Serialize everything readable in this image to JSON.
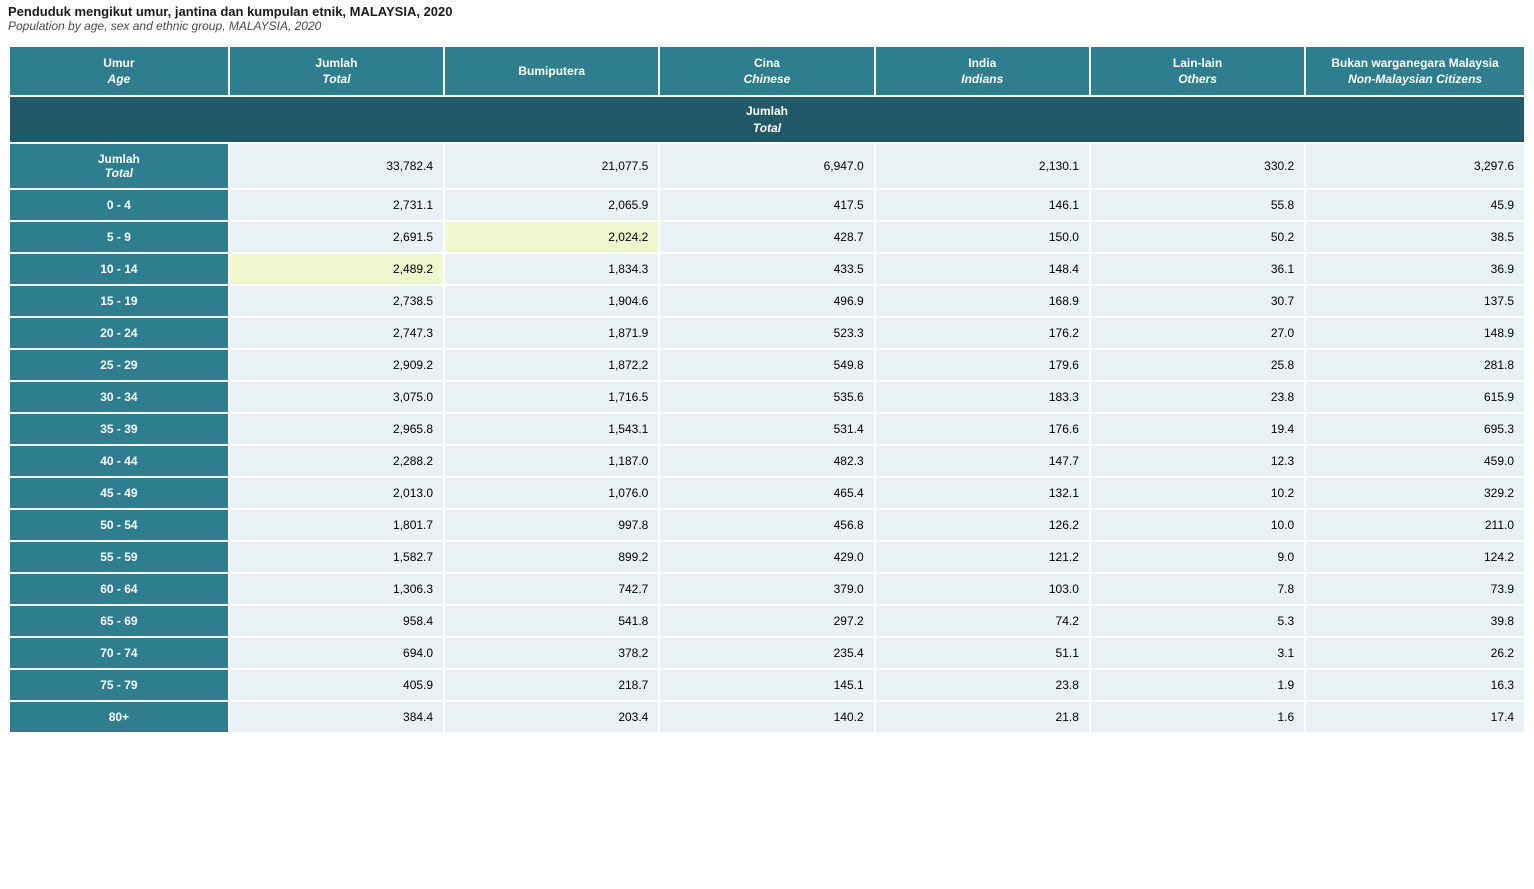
{
  "title": {
    "main": "Penduduk mengikut umur, jantina dan kumpulan etnik, MALAYSIA, 2020",
    "sub": "Population by age, sex and ethnic group, MALAYSIA, 2020"
  },
  "table": {
    "type": "table",
    "colors": {
      "header_bg": "#2e7e8f",
      "section_bg": "#215968",
      "header_text": "#ffffff",
      "cell_bg": "#eaf1f5",
      "cell_highlight_bg": "#eff7ce",
      "cell_text": "#000000",
      "page_bg": "#ffffff"
    },
    "font_sizes": {
      "title": 13,
      "subtitle": 12,
      "header": 12,
      "cell": 12
    },
    "columns": [
      {
        "key": "age",
        "line1": "Umur",
        "line2": "Age"
      },
      {
        "key": "total",
        "line1": "Jumlah",
        "line2": "Total"
      },
      {
        "key": "bumiputera",
        "line1": "Bumiputera",
        "line2": ""
      },
      {
        "key": "chinese",
        "line1": "Cina",
        "line2": "Chinese"
      },
      {
        "key": "indians",
        "line1": "India",
        "line2": "Indians"
      },
      {
        "key": "others",
        "line1": "Lain-lain",
        "line2": "Others"
      },
      {
        "key": "noncit",
        "line1": "Bukan warganegara Malaysia",
        "line2": "Non-Malaysian Citizens"
      }
    ],
    "section_header": {
      "line1": "Jumlah",
      "line2": "Total"
    },
    "rows": [
      {
        "label_line1": "Jumlah",
        "label_line2": "Total",
        "values": [
          "33,782.4",
          "21,077.5",
          "6,947.0",
          "2,130.1",
          "330.2",
          "3,297.6"
        ],
        "highlights": [
          false,
          false,
          false,
          false,
          false,
          false
        ]
      },
      {
        "label_line1": "0 - 4",
        "label_line2": "",
        "values": [
          "2,731.1",
          "2,065.9",
          "417.5",
          "146.1",
          "55.8",
          "45.9"
        ],
        "highlights": [
          false,
          false,
          false,
          false,
          false,
          false
        ]
      },
      {
        "label_line1": "5 - 9",
        "label_line2": "",
        "values": [
          "2,691.5",
          "2,024.2",
          "428.7",
          "150.0",
          "50.2",
          "38.5"
        ],
        "highlights": [
          false,
          true,
          false,
          false,
          false,
          false
        ]
      },
      {
        "label_line1": "10 - 14",
        "label_line2": "",
        "values": [
          "2,489.2",
          "1,834.3",
          "433.5",
          "148.4",
          "36.1",
          "36.9"
        ],
        "highlights": [
          true,
          false,
          false,
          false,
          false,
          false
        ]
      },
      {
        "label_line1": "15 - 19",
        "label_line2": "",
        "values": [
          "2,738.5",
          "1,904.6",
          "496.9",
          "168.9",
          "30.7",
          "137.5"
        ],
        "highlights": [
          false,
          false,
          false,
          false,
          false,
          false
        ]
      },
      {
        "label_line1": "20 - 24",
        "label_line2": "",
        "values": [
          "2,747.3",
          "1,871.9",
          "523.3",
          "176.2",
          "27.0",
          "148.9"
        ],
        "highlights": [
          false,
          false,
          false,
          false,
          false,
          false
        ]
      },
      {
        "label_line1": "25 - 29",
        "label_line2": "",
        "values": [
          "2,909.2",
          "1,872.2",
          "549.8",
          "179.6",
          "25.8",
          "281.8"
        ],
        "highlights": [
          false,
          false,
          false,
          false,
          false,
          false
        ]
      },
      {
        "label_line1": "30 - 34",
        "label_line2": "",
        "values": [
          "3,075.0",
          "1,716.5",
          "535.6",
          "183.3",
          "23.8",
          "615.9"
        ],
        "highlights": [
          false,
          false,
          false,
          false,
          false,
          false
        ]
      },
      {
        "label_line1": "35 - 39",
        "label_line2": "",
        "values": [
          "2,965.8",
          "1,543.1",
          "531.4",
          "176.6",
          "19.4",
          "695.3"
        ],
        "highlights": [
          false,
          false,
          false,
          false,
          false,
          false
        ]
      },
      {
        "label_line1": "40 - 44",
        "label_line2": "",
        "values": [
          "2,288.2",
          "1,187.0",
          "482.3",
          "147.7",
          "12.3",
          "459.0"
        ],
        "highlights": [
          false,
          false,
          false,
          false,
          false,
          false
        ]
      },
      {
        "label_line1": "45 - 49",
        "label_line2": "",
        "values": [
          "2,013.0",
          "1,076.0",
          "465.4",
          "132.1",
          "10.2",
          "329.2"
        ],
        "highlights": [
          false,
          false,
          false,
          false,
          false,
          false
        ]
      },
      {
        "label_line1": "50 - 54",
        "label_line2": "",
        "values": [
          "1,801.7",
          "997.8",
          "456.8",
          "126.2",
          "10.0",
          "211.0"
        ],
        "highlights": [
          false,
          false,
          false,
          false,
          false,
          false
        ]
      },
      {
        "label_line1": "55 - 59",
        "label_line2": "",
        "values": [
          "1,582.7",
          "899.2",
          "429.0",
          "121.2",
          "9.0",
          "124.2"
        ],
        "highlights": [
          false,
          false,
          false,
          false,
          false,
          false
        ]
      },
      {
        "label_line1": "60 - 64",
        "label_line2": "",
        "values": [
          "1,306.3",
          "742.7",
          "379.0",
          "103.0",
          "7.8",
          "73.9"
        ],
        "highlights": [
          false,
          false,
          false,
          false,
          false,
          false
        ]
      },
      {
        "label_line1": "65 - 69",
        "label_line2": "",
        "values": [
          "958.4",
          "541.8",
          "297.2",
          "74.2",
          "5.3",
          "39.8"
        ],
        "highlights": [
          false,
          false,
          false,
          false,
          false,
          false
        ]
      },
      {
        "label_line1": "70 - 74",
        "label_line2": "",
        "values": [
          "694.0",
          "378.2",
          "235.4",
          "51.1",
          "3.1",
          "26.2"
        ],
        "highlights": [
          false,
          false,
          false,
          false,
          false,
          false
        ]
      },
      {
        "label_line1": "75 - 79",
        "label_line2": "",
        "values": [
          "405.9",
          "218.7",
          "145.1",
          "23.8",
          "1.9",
          "16.3"
        ],
        "highlights": [
          false,
          false,
          false,
          false,
          false,
          false
        ]
      },
      {
        "label_line1": "80+",
        "label_line2": "",
        "values": [
          "384.4",
          "203.4",
          "140.2",
          "21.8",
          "1.6",
          "17.4"
        ],
        "highlights": [
          false,
          false,
          false,
          false,
          false,
          false
        ]
      }
    ]
  }
}
